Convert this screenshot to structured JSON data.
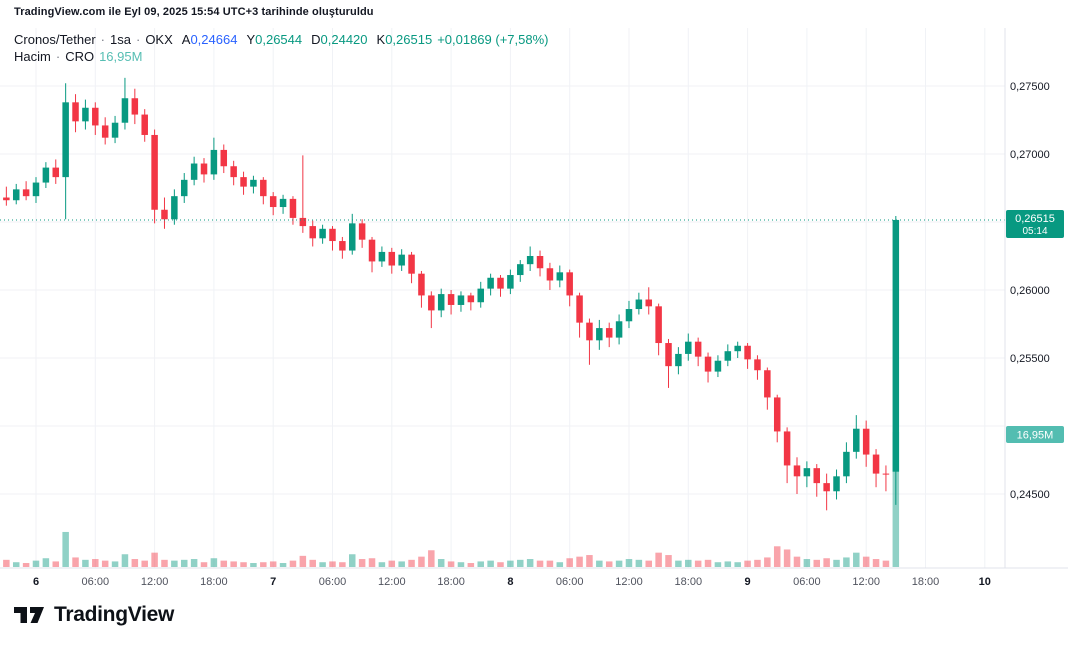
{
  "attribution": "TradingView.com ile Eyl 09, 2025 15:54 UTC+3 tarihinde oluşturuldu",
  "legend": {
    "symbol": "Cronos/Tether",
    "sep": "·",
    "interval": "1sa",
    "exchange": "OKX",
    "ohlc": {
      "open_label": "A",
      "open": "0,24664",
      "high_label": "Y",
      "high": "0,26544",
      "low_label": "D",
      "low": "0,24420",
      "close_label": "K",
      "close": "0,26515",
      "change": "+0,01869 (+7,58%)"
    },
    "volume_row": {
      "label": "Hacim",
      "sep": "·",
      "ticker": "CRO",
      "value": "16,95M"
    }
  },
  "axis": {
    "price_labels": [
      {
        "text": "0,27500",
        "price": 0.275
      },
      {
        "text": "0,27000",
        "price": 0.27
      },
      {
        "text": "0,26000",
        "price": 0.26
      },
      {
        "text": "0,25500",
        "price": 0.255
      },
      {
        "text": "0,24500",
        "price": 0.245
      }
    ],
    "time_labels": [
      {
        "text": "6",
        "type": "day"
      },
      {
        "text": "06:00",
        "type": "hour"
      },
      {
        "text": "12:00",
        "type": "hour"
      },
      {
        "text": "18:00",
        "type": "hour"
      },
      {
        "text": "7",
        "type": "day"
      },
      {
        "text": "06:00",
        "type": "hour"
      },
      {
        "text": "12:00",
        "type": "hour"
      },
      {
        "text": "18:00",
        "type": "hour"
      },
      {
        "text": "8",
        "type": "day"
      },
      {
        "text": "06:00",
        "type": "hour"
      },
      {
        "text": "12:00",
        "type": "hour"
      },
      {
        "text": "18:00",
        "type": "hour"
      },
      {
        "text": "9",
        "type": "day"
      },
      {
        "text": "06:00",
        "type": "hour"
      },
      {
        "text": "12:00",
        "type": "hour"
      },
      {
        "text": "18:00",
        "type": "hour"
      },
      {
        "text": "10",
        "type": "day"
      }
    ],
    "price_badge": {
      "text": "0,26515",
      "countdown": "05:14",
      "color": "#089981"
    },
    "volume_badge": {
      "text": "16,95M",
      "color": "#53bdb1"
    }
  },
  "chart_data": {
    "type": "candlestick",
    "title": "Cronos/Tether 1h OKX",
    "interval": "1h",
    "start_time": "2025-09-05 21:00",
    "last_price": 0.26515,
    "last_candle": {
      "open": 0.24664,
      "high": 0.26544,
      "low": 0.2442,
      "close": 0.26515,
      "change": "+0,01869 (+7,58%)",
      "countdown": "05:14"
    },
    "last_volume_label": "16,95M",
    "volume_unit": "M CRO",
    "price_ticks": [
      0.275,
      0.27,
      0.265,
      0.26,
      0.255,
      0.25,
      0.245
    ],
    "ylim": [
      0.2396,
      0.2793
    ],
    "grid": true,
    "colors": {
      "up": "#089981",
      "down": "#f23645",
      "vol_up": "rgba(8,153,129,0.45)",
      "vol_down": "rgba(242,54,69,0.45)",
      "grid": "#f0f2f6",
      "axis_line": "#e0e3eb",
      "label": "#131722"
    },
    "candles": [
      [
        0.2668,
        0.2676,
        0.2662,
        0.2666,
        0.9
      ],
      [
        0.2666,
        0.2678,
        0.2663,
        0.2674,
        0.6
      ],
      [
        0.2674,
        0.268,
        0.2666,
        0.2669,
        0.5
      ],
      [
        0.2669,
        0.2683,
        0.2664,
        0.2679,
        0.8
      ],
      [
        0.2679,
        0.2694,
        0.2675,
        0.269,
        1.1
      ],
      [
        0.269,
        0.2696,
        0.2678,
        0.2683,
        0.7
      ],
      [
        0.2683,
        0.2752,
        0.2652,
        0.2738,
        4.4
      ],
      [
        0.2738,
        0.2744,
        0.2716,
        0.2724,
        1.2
      ],
      [
        0.2724,
        0.274,
        0.2718,
        0.2734,
        0.9
      ],
      [
        0.2734,
        0.2738,
        0.2714,
        0.2721,
        1.0
      ],
      [
        0.2721,
        0.2727,
        0.2707,
        0.2712,
        0.8
      ],
      [
        0.2712,
        0.2728,
        0.2708,
        0.2723,
        0.7
      ],
      [
        0.2723,
        0.2756,
        0.2718,
        0.2741,
        1.6
      ],
      [
        0.2741,
        0.2748,
        0.2722,
        0.2729,
        1.0
      ],
      [
        0.2729,
        0.2733,
        0.2709,
        0.2714,
        0.8
      ],
      [
        0.2714,
        0.2718,
        0.2649,
        0.2659,
        1.8
      ],
      [
        0.2659,
        0.2668,
        0.2645,
        0.2652,
        0.9
      ],
      [
        0.2652,
        0.2674,
        0.2648,
        0.2669,
        0.8
      ],
      [
        0.2669,
        0.2686,
        0.2664,
        0.2681,
        0.9
      ],
      [
        0.2681,
        0.2698,
        0.2677,
        0.2693,
        1.0
      ],
      [
        0.2693,
        0.2697,
        0.2679,
        0.2685,
        0.6
      ],
      [
        0.2685,
        0.2712,
        0.2681,
        0.2703,
        1.1
      ],
      [
        0.2703,
        0.2707,
        0.2686,
        0.2691,
        0.8
      ],
      [
        0.2691,
        0.2695,
        0.2677,
        0.2683,
        0.7
      ],
      [
        0.2683,
        0.2687,
        0.267,
        0.2676,
        0.6
      ],
      [
        0.2676,
        0.2684,
        0.2671,
        0.2681,
        0.5
      ],
      [
        0.2681,
        0.2683,
        0.2663,
        0.2669,
        0.6
      ],
      [
        0.2669,
        0.2672,
        0.2655,
        0.2661,
        0.7
      ],
      [
        0.2661,
        0.267,
        0.2656,
        0.2667,
        0.5
      ],
      [
        0.2667,
        0.2669,
        0.2648,
        0.2653,
        0.8
      ],
      [
        0.2653,
        0.2699,
        0.2642,
        0.2647,
        1.4
      ],
      [
        0.2647,
        0.2651,
        0.2632,
        0.2638,
        0.9
      ],
      [
        0.2638,
        0.2648,
        0.2634,
        0.2645,
        0.6
      ],
      [
        0.2645,
        0.2647,
        0.2629,
        0.2636,
        0.7
      ],
      [
        0.2636,
        0.2639,
        0.2623,
        0.2629,
        0.6
      ],
      [
        0.2629,
        0.2656,
        0.2626,
        0.2649,
        1.6
      ],
      [
        0.2649,
        0.2652,
        0.2631,
        0.2637,
        1.0
      ],
      [
        0.2637,
        0.2639,
        0.2613,
        0.2621,
        1.1
      ],
      [
        0.2621,
        0.2632,
        0.2617,
        0.2628,
        0.6
      ],
      [
        0.2628,
        0.2631,
        0.2612,
        0.2618,
        0.8
      ],
      [
        0.2618,
        0.263,
        0.2614,
        0.2626,
        0.7
      ],
      [
        0.2626,
        0.2628,
        0.2605,
        0.2612,
        0.9
      ],
      [
        0.2612,
        0.2614,
        0.2587,
        0.2596,
        1.3
      ],
      [
        0.2596,
        0.2599,
        0.2572,
        0.2585,
        2.1
      ],
      [
        0.2585,
        0.2601,
        0.258,
        0.2597,
        1.0
      ],
      [
        0.2597,
        0.26,
        0.2582,
        0.2589,
        0.7
      ],
      [
        0.2589,
        0.2599,
        0.2584,
        0.2596,
        0.6
      ],
      [
        0.2596,
        0.2598,
        0.2585,
        0.2591,
        0.5
      ],
      [
        0.2591,
        0.2606,
        0.2587,
        0.2601,
        0.7
      ],
      [
        0.2601,
        0.2612,
        0.2596,
        0.2609,
        0.8
      ],
      [
        0.2609,
        0.2611,
        0.2595,
        0.2601,
        0.6
      ],
      [
        0.2601,
        0.2615,
        0.2597,
        0.2611,
        0.8
      ],
      [
        0.2611,
        0.2622,
        0.2606,
        0.2619,
        0.9
      ],
      [
        0.2619,
        0.2632,
        0.2614,
        0.2625,
        1.0
      ],
      [
        0.2625,
        0.2629,
        0.261,
        0.2616,
        0.8
      ],
      [
        0.2616,
        0.262,
        0.26,
        0.2607,
        0.8
      ],
      [
        0.2607,
        0.2618,
        0.2602,
        0.2613,
        0.6
      ],
      [
        0.2613,
        0.2615,
        0.2588,
        0.2596,
        1.1
      ],
      [
        0.2596,
        0.2598,
        0.2565,
        0.2576,
        1.3
      ],
      [
        0.2576,
        0.2579,
        0.2545,
        0.2563,
        1.5
      ],
      [
        0.2563,
        0.2578,
        0.2556,
        0.2572,
        0.8
      ],
      [
        0.2572,
        0.2576,
        0.2558,
        0.2565,
        0.7
      ],
      [
        0.2565,
        0.2582,
        0.256,
        0.2577,
        0.8
      ],
      [
        0.2577,
        0.2592,
        0.2572,
        0.2586,
        1.0
      ],
      [
        0.2586,
        0.2598,
        0.2582,
        0.2593,
        0.9
      ],
      [
        0.2593,
        0.2602,
        0.2582,
        0.2588,
        0.8
      ],
      [
        0.2588,
        0.259,
        0.2552,
        0.2561,
        1.8
      ],
      [
        0.2561,
        0.2564,
        0.2528,
        0.2544,
        1.5
      ],
      [
        0.2544,
        0.2558,
        0.2538,
        0.2553,
        0.8
      ],
      [
        0.2553,
        0.2568,
        0.2548,
        0.2562,
        0.9
      ],
      [
        0.2562,
        0.2565,
        0.2544,
        0.2551,
        0.8
      ],
      [
        0.2551,
        0.2554,
        0.2532,
        0.254,
        0.9
      ],
      [
        0.254,
        0.2552,
        0.2536,
        0.2548,
        0.6
      ],
      [
        0.2548,
        0.256,
        0.2544,
        0.2555,
        0.7
      ],
      [
        0.2555,
        0.2562,
        0.255,
        0.2559,
        0.6
      ],
      [
        0.2559,
        0.2561,
        0.2542,
        0.2549,
        0.8
      ],
      [
        0.2549,
        0.2552,
        0.2534,
        0.2541,
        0.9
      ],
      [
        0.2541,
        0.2543,
        0.2512,
        0.2521,
        1.2
      ],
      [
        0.2521,
        0.2523,
        0.2488,
        0.2496,
        2.6
      ],
      [
        0.2496,
        0.2499,
        0.2458,
        0.2471,
        2.2
      ],
      [
        0.2471,
        0.2477,
        0.245,
        0.2463,
        1.3
      ],
      [
        0.2463,
        0.2474,
        0.2455,
        0.2469,
        1.0
      ],
      [
        0.2469,
        0.2472,
        0.2448,
        0.2458,
        0.9
      ],
      [
        0.2458,
        0.2465,
        0.2438,
        0.2452,
        1.1
      ],
      [
        0.2452,
        0.2468,
        0.2446,
        0.2463,
        0.9
      ],
      [
        0.2463,
        0.2488,
        0.2458,
        0.2481,
        1.2
      ],
      [
        0.2481,
        0.2508,
        0.2476,
        0.2498,
        1.8
      ],
      [
        0.2498,
        0.2504,
        0.247,
        0.2479,
        1.3
      ],
      [
        0.2479,
        0.2483,
        0.2455,
        0.2465,
        1.0
      ],
      [
        0.2465,
        0.2471,
        0.2452,
        0.24646,
        0.8
      ],
      [
        0.24664,
        0.26544,
        0.2442,
        0.26515,
        16.95
      ]
    ]
  },
  "logo": {
    "text": "TradingView"
  }
}
